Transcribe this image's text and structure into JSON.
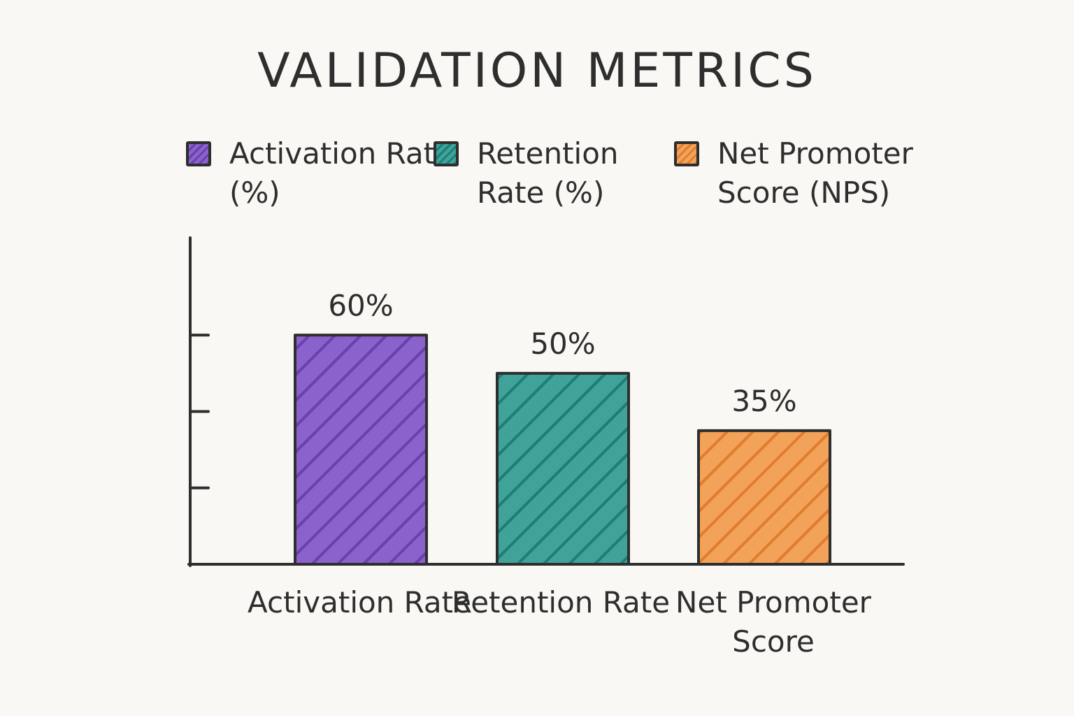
{
  "chart_data": {
    "type": "bar",
    "title": "VALIDATION METRICS",
    "xlabel": "",
    "ylabel": "",
    "ylim": [
      0,
      80
    ],
    "grid": false,
    "legend_position": "top",
    "categories": [
      "Activation Rate",
      "Retention Rate",
      "Net Promoter Score"
    ],
    "legend": [
      {
        "label": "Activation Rate (%)",
        "color": "#8b62cc"
      },
      {
        "label": "Retention Rate (%)",
        "color": "#3fa39a"
      },
      {
        "label": "Net Promoter Score (NPS)",
        "color": "#f3a25a"
      }
    ],
    "values": [
      60,
      50,
      35
    ],
    "value_labels": [
      "60%",
      "50%",
      "35%"
    ],
    "colors": [
      "#8b62cc",
      "#3fa39a",
      "#f3a25a"
    ],
    "stripe_colors": [
      "#6a3fae",
      "#1f7d76",
      "#e07d2f"
    ]
  }
}
